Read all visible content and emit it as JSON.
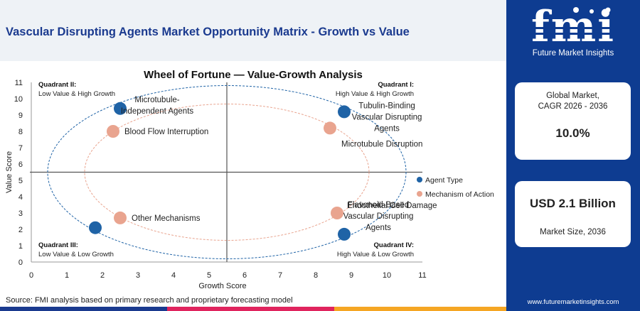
{
  "header": {
    "title": "Vascular Disrupting Agents Market Opportunity Matrix - Growth vs Value"
  },
  "logo": {
    "letters": "fmi",
    "tagline": "Future Market Insights"
  },
  "cards": {
    "cagr_label": "Global Market,\nCAGR 2026 - 2036",
    "cagr_value": "10.0%",
    "size_value": "USD 2.1 Billion",
    "size_label": "Market Size, 2036"
  },
  "footer": {
    "source": "Source: FMI analysis based on primary research and proprietary forecasting model",
    "url": "www.futuremarketinsights.com"
  },
  "colors": {
    "brand_blue": "#0e3c91",
    "agent_type": "#1f63a6",
    "mechanism": "#e9a48f",
    "footer_stripe": [
      "#1a3a8f",
      "#e0245e",
      "#f5a623"
    ]
  },
  "chart_data": {
    "type": "scatter",
    "title": "Wheel of Fortune — Value-Growth Analysis",
    "xlabel": "Growth Score",
    "ylabel": "Value Score",
    "xlim": [
      0,
      11
    ],
    "ylim": [
      0,
      11
    ],
    "xticks": [
      0,
      1,
      2,
      3,
      4,
      5,
      6,
      7,
      8,
      9,
      10,
      11
    ],
    "yticks": [
      0,
      1,
      2,
      3,
      4,
      5,
      6,
      7,
      8,
      9,
      10,
      11
    ],
    "divider": {
      "x": 5.5,
      "y": 5.5
    },
    "legend_position": "right",
    "series": [
      {
        "name": "Agent Type",
        "color": "#1f63a6",
        "points": [
          {
            "label": "Microtubule-Independent Agents",
            "x": 2.5,
            "y": 9.4
          },
          {
            "label": "Tubulin-Binding Vascular Disrupting Agents",
            "x": 8.8,
            "y": 9.2
          },
          {
            "label": "Flavonoid-Based Vascular Disrupting Agents",
            "x": 8.8,
            "y": 1.7
          },
          {
            "label": "",
            "x": 1.8,
            "y": 2.1
          }
        ]
      },
      {
        "name": "Mechanism of Action",
        "color": "#e9a48f",
        "points": [
          {
            "label": "Blood Flow Interruption",
            "x": 2.3,
            "y": 8.0
          },
          {
            "label": "Microtubule Disruption",
            "x": 8.4,
            "y": 8.2
          },
          {
            "label": "Endothelial Cell Damage",
            "x": 8.6,
            "y": 3.0
          },
          {
            "label": "Other Mechanisms",
            "x": 2.5,
            "y": 2.7
          }
        ]
      }
    ],
    "quadrants": [
      {
        "name": "Quadrant II:",
        "desc": "Low Value & High Growth"
      },
      {
        "name": "Quadrant I:",
        "desc": "High Value & High Growth"
      },
      {
        "name": "Quadrant III:",
        "desc": "Low Value & Low Growth"
      },
      {
        "name": "Quadrant IV:",
        "desc": "High Value & Low Growth"
      }
    ]
  }
}
